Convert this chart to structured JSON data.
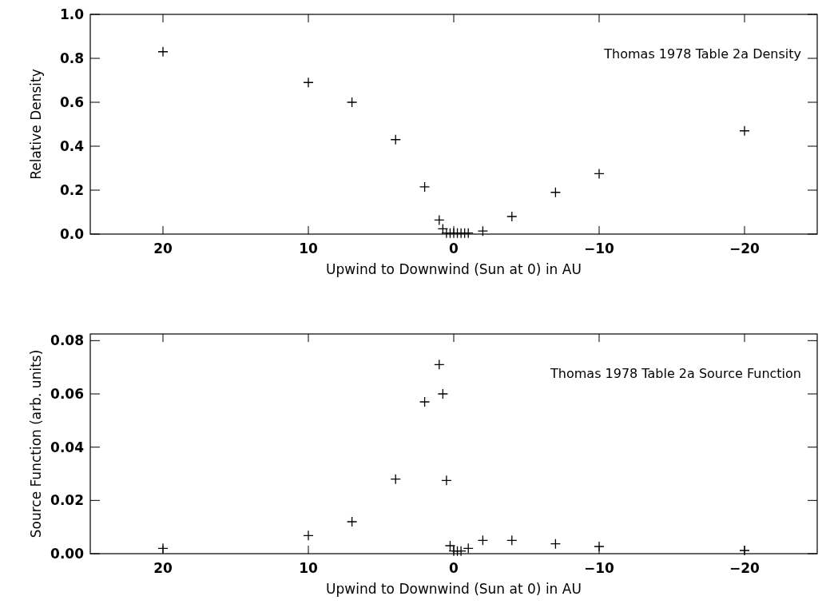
{
  "chart_data": [
    {
      "type": "scatter",
      "xlabel": "Upwind to Downwind (Sun at 0) in AU",
      "ylabel": "Relative Density",
      "annotations": [
        "Thomas 1978 Table 2a Density"
      ],
      "marker": "cross",
      "grid": false,
      "xlim": [
        25,
        -25
      ],
      "xticks": [
        20,
        10,
        0,
        -10,
        -20
      ],
      "ylim": [
        0,
        1
      ],
      "yticks": [
        {
          "value": 0,
          "label": "0.0"
        },
        {
          "value": 0.2,
          "label": "0.2"
        },
        {
          "value": 0.4,
          "label": "0.4"
        },
        {
          "value": 0.6,
          "label": "0.6"
        },
        {
          "value": 0.8,
          "label": "0.8"
        },
        {
          "value": 1,
          "label": "1.0"
        }
      ],
      "series": [
        {
          "color": "#000000",
          "x": [
            20,
            10,
            7,
            4,
            2,
            1,
            0.75,
            0.5,
            0.25,
            0,
            -0.25,
            -0.5,
            -0.75,
            -1,
            -2,
            -4,
            -7,
            -10,
            -20
          ],
          "values": [
            0.83,
            0.69,
            0.6,
            0.43,
            0.215,
            0.064,
            0.024,
            0.005,
            0.005,
            0.005,
            0.005,
            0.005,
            0.005,
            0.005,
            0.014,
            0.08,
            0.19,
            0.275,
            0.47
          ]
        }
      ]
    },
    {
      "type": "scatter",
      "xlabel": "Upwind to Downwind (Sun at 0) in AU",
      "ylabel": "Source Function (arb. units)",
      "annotations": [
        "Thomas 1978 Table 2a Source Function"
      ],
      "marker": "cross",
      "grid": false,
      "xlim": [
        25,
        -25
      ],
      "xticks": [
        20,
        10,
        0,
        -10,
        -20
      ],
      "ylim": [
        0,
        0.0825
      ],
      "yticks": [
        {
          "value": 0,
          "label": "0.00"
        },
        {
          "value": 0.02,
          "label": "0.02"
        },
        {
          "value": 0.04,
          "label": "0.04"
        },
        {
          "value": 0.06,
          "label": "0.06"
        },
        {
          "value": 0.08,
          "label": "0.08"
        }
      ],
      "series": [
        {
          "color": "#000000",
          "x": [
            20,
            10,
            7,
            4,
            2,
            1,
            0.75,
            0.5,
            0.25,
            0,
            -0.25,
            -0.5,
            -1,
            -2,
            -4,
            -7,
            -10,
            -20
          ],
          "values": [
            0.002,
            0.0068,
            0.012,
            0.028,
            0.057,
            0.071,
            0.06,
            0.0275,
            0.003,
            0.001,
            0.001,
            0.001,
            0.002,
            0.005,
            0.005,
            0.0037,
            0.0027,
            0.0012
          ]
        }
      ]
    }
  ]
}
